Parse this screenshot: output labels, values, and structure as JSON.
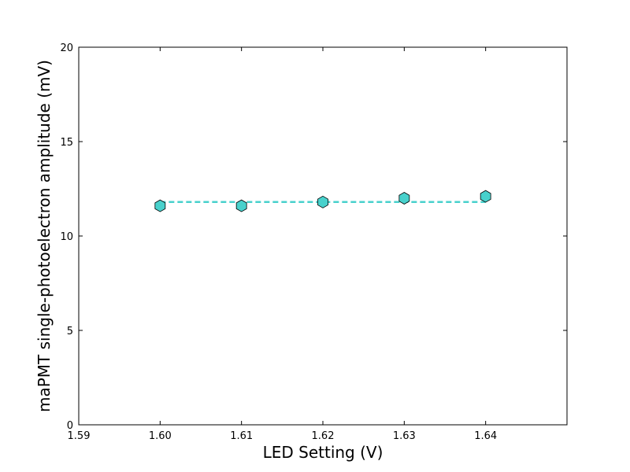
{
  "chart_data": {
    "type": "scatter",
    "title": "",
    "xlabel": "LED Setting (V)",
    "ylabel": "maPMT single-photoelectron amplitude (mV)",
    "xlim": [
      1.59,
      1.65
    ],
    "ylim": [
      0,
      20
    ],
    "xticks": [
      1.59,
      1.6,
      1.61,
      1.62,
      1.63,
      1.64
    ],
    "xtick_labels": [
      "1.59",
      "1.60",
      "1.61",
      "1.62",
      "1.63",
      "1.64"
    ],
    "yticks": [
      0,
      5,
      10,
      15,
      20
    ],
    "ytick_labels": [
      "0",
      "5",
      "10",
      "15",
      "20"
    ],
    "grid": false,
    "legend": "none",
    "series": [
      {
        "marker": "hexagon",
        "color": "#48d1cc",
        "edge_color": "#000000",
        "x": [
          1.6,
          1.61,
          1.62,
          1.63,
          1.64
        ],
        "y": [
          11.6,
          11.6,
          11.8,
          12.0,
          12.1
        ]
      }
    ],
    "fit_line": {
      "style": "dashed",
      "color": "#48d1cc",
      "x": [
        1.6,
        1.64
      ],
      "y": [
        11.8,
        11.8
      ]
    }
  }
}
